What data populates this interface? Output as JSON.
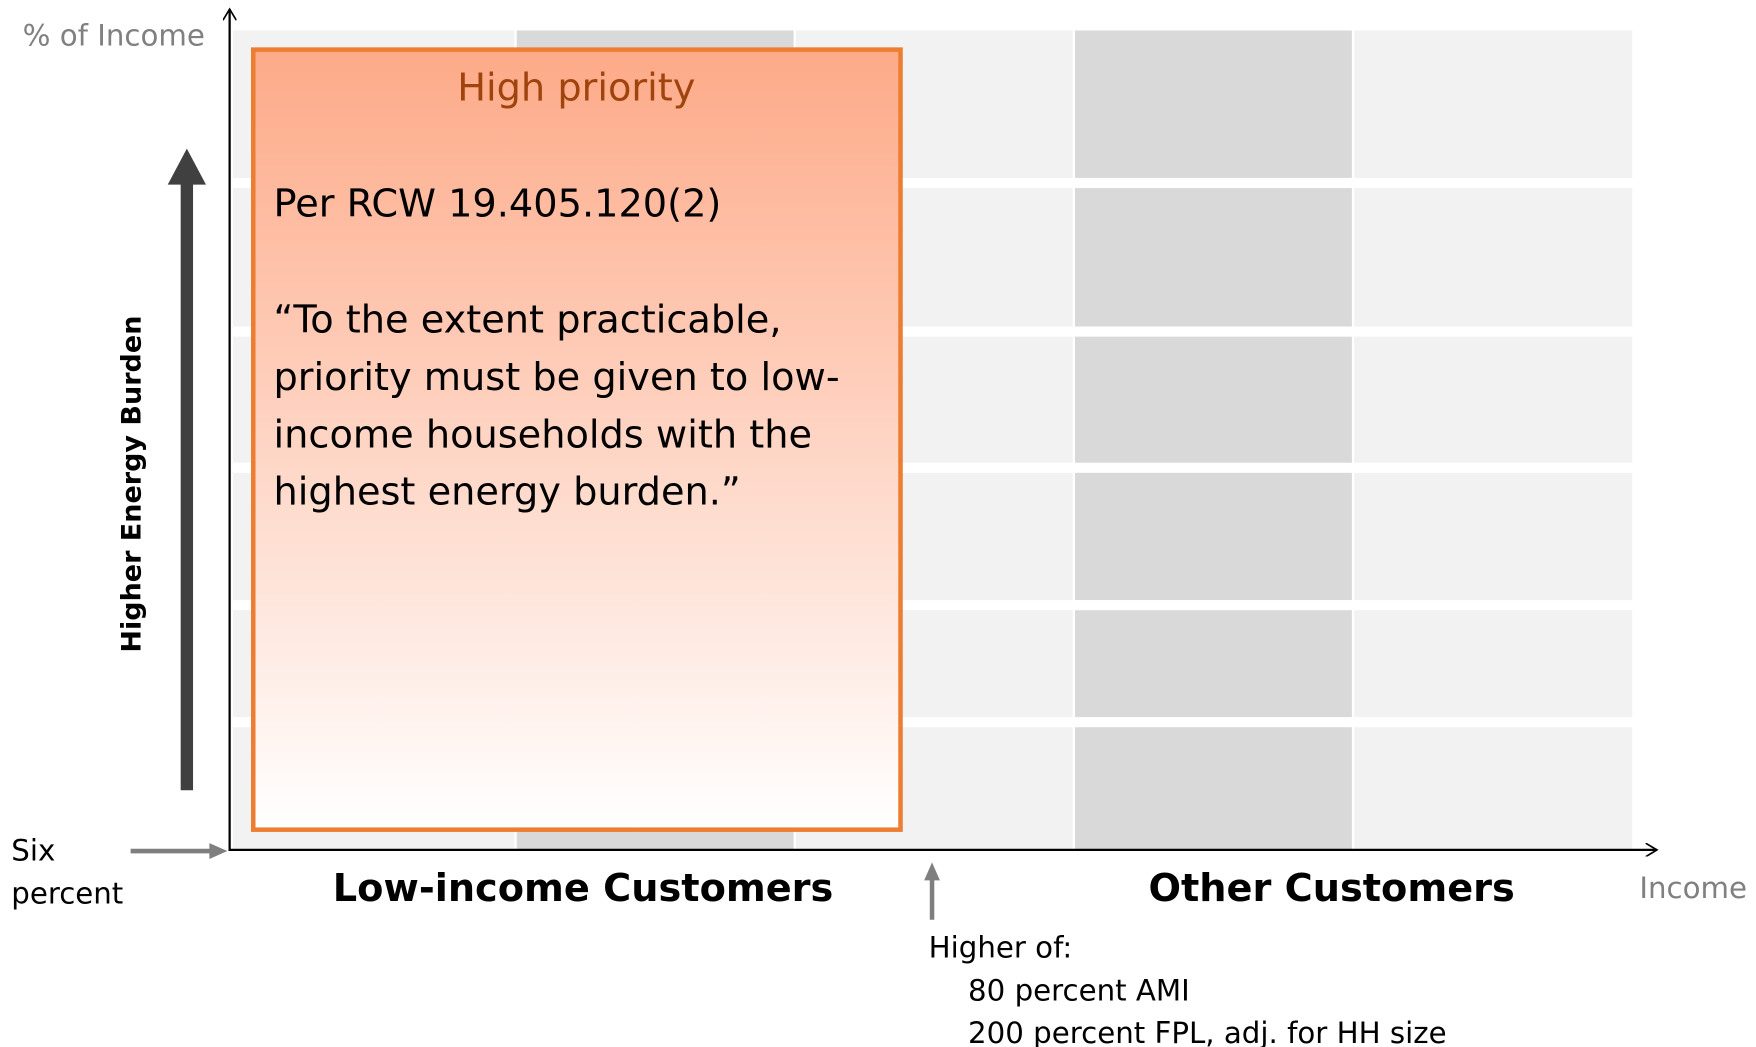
{
  "y_axis_label": "% of Income",
  "x_axis_label": "Income",
  "side_label": "Higher Energy Burden",
  "baseline_label": [
    "Six",
    "percent"
  ],
  "groups": [
    "Low-income Customers",
    "Other Customers"
  ],
  "threshold": {
    "title": "Higher of:",
    "items": [
      "80 percent AMI",
      "200 percent FPL, adj. for HH size"
    ]
  },
  "priority_box": {
    "title": "High priority",
    "citation": "Per RCW 19.405.120(2)",
    "quote_lines": [
      "“To the extent practicable,",
      "priority must be given to low-",
      "income households with the",
      "highest energy burden.”"
    ]
  }
}
